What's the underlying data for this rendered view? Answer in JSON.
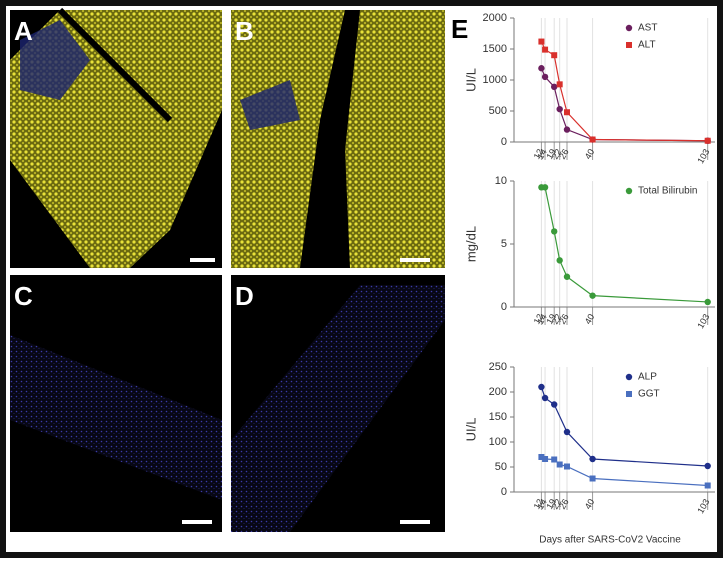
{
  "panel_labels": [
    "A",
    "B",
    "C",
    "D",
    "E"
  ],
  "x_title": "Days after SARS-CoV2 Vaccine",
  "chart_data": [
    {
      "type": "line",
      "ylabel": "UI/L",
      "ylim": [
        0,
        2000
      ],
      "yticks": [
        0,
        500,
        1000,
        1500,
        2000
      ],
      "xlim": [
        -3,
        107
      ],
      "xticks": [
        12,
        14,
        19,
        22,
        26,
        40,
        103
      ],
      "grid": "x",
      "legend": "top-right",
      "series": [
        {
          "name": "AST",
          "color": "#6b1f5e",
          "marker": "circle",
          "x": [
            12,
            14,
            19,
            22,
            26,
            40,
            103
          ],
          "values": [
            1190,
            1050,
            890,
            530,
            200,
            40,
            20
          ]
        },
        {
          "name": "ALT",
          "color": "#d9302c",
          "marker": "square",
          "x": [
            12,
            14,
            19,
            22,
            26,
            40,
            103
          ],
          "values": [
            1620,
            1490,
            1400,
            930,
            480,
            40,
            20
          ]
        }
      ]
    },
    {
      "type": "line",
      "ylabel": "mg/dL",
      "ylim": [
        0,
        10
      ],
      "yticks": [
        0,
        5,
        10
      ],
      "xlim": [
        -3,
        107
      ],
      "xticks": [
        12,
        14,
        19,
        22,
        26,
        40,
        103
      ],
      "grid": "x",
      "legend": "top-right",
      "series": [
        {
          "name": "Total Bilirubin",
          "color": "#3a9a3a",
          "marker": "circle",
          "x": [
            12,
            14,
            19,
            22,
            26,
            40,
            103
          ],
          "values": [
            9.5,
            9.5,
            6.0,
            3.7,
            2.4,
            0.9,
            0.4
          ]
        }
      ]
    },
    {
      "type": "line",
      "ylabel": "UI/L",
      "ylim": [
        0,
        250
      ],
      "yticks": [
        0,
        50,
        100,
        150,
        200,
        250
      ],
      "xlim": [
        -3,
        107
      ],
      "xticks": [
        12,
        14,
        19,
        22,
        26,
        40,
        103
      ],
      "grid": "x",
      "legend": "top-right",
      "series": [
        {
          "name": "ALP",
          "color": "#1f2f8a",
          "marker": "circle",
          "x": [
            12,
            14,
            19,
            26,
            40,
            103
          ],
          "values": [
            210,
            188,
            175,
            120,
            66,
            52
          ]
        },
        {
          "name": "GGT",
          "color": "#4a6fbf",
          "marker": "square",
          "x": [
            12,
            14,
            19,
            22,
            26,
            40,
            103
          ],
          "values": [
            70,
            66,
            65,
            55,
            51,
            27,
            13
          ]
        }
      ]
    }
  ]
}
